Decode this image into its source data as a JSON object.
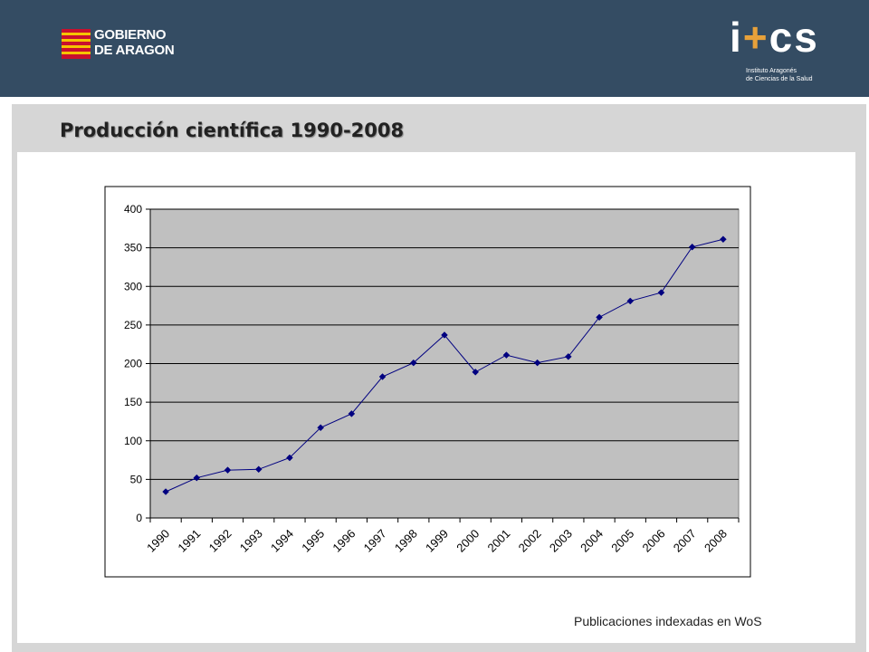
{
  "header": {
    "gov_logo_line1": "GOBIERNO",
    "gov_logo_line2": "DE ARAGON",
    "ics_logo_text": "i+cs",
    "ics_sub_line1": "Instituto Aragonés",
    "ics_sub_line2": "de Ciencias de la Salud"
  },
  "slide": {
    "title": "Producción científica 1990-2008",
    "caption": "Publicaciones indexadas en WoS"
  },
  "colors": {
    "header_bg": "#344c63",
    "plot_bg": "#c0c0c0",
    "series": "#000080"
  },
  "chart_data": {
    "type": "line",
    "title": "",
    "xlabel": "",
    "ylabel": "",
    "categories": [
      "1990",
      "1991",
      "1992",
      "1993",
      "1994",
      "1995",
      "1996",
      "1997",
      "1998",
      "1999",
      "2000",
      "2001",
      "2002",
      "2003",
      "2004",
      "2005",
      "2006",
      "2007",
      "2008"
    ],
    "values": [
      34,
      52,
      62,
      63,
      78,
      117,
      135,
      183,
      201,
      237,
      189,
      211,
      201,
      209,
      260,
      281,
      292,
      351,
      361
    ],
    "ylim": [
      0,
      400
    ],
    "yticks": [
      "0",
      "50",
      "100",
      "150",
      "200",
      "250",
      "300",
      "350",
      "400"
    ],
    "grid": true,
    "legend": "none"
  }
}
